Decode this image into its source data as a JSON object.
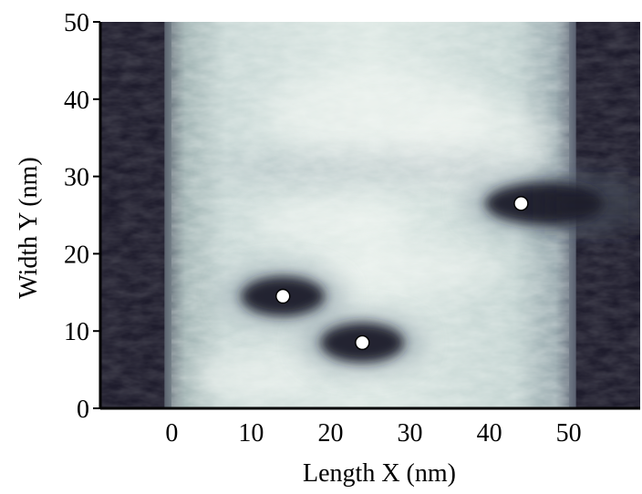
{
  "chart_data": {
    "type": "heatmap",
    "title": "",
    "xlabel": "Length X (nm)",
    "ylabel": "Width Y (nm)",
    "xlim": [
      -9,
      59
    ],
    "ylim": [
      0,
      50
    ],
    "x_ticks": [
      0,
      10,
      20,
      30,
      40,
      50
    ],
    "y_ticks": [
      0,
      10,
      20,
      30,
      40,
      50
    ],
    "grid": false,
    "legend": "none",
    "colors": {
      "low": "#1e1c2c",
      "mid": "#8494a0",
      "high": "#f2f6f2",
      "marker_fill": "#ffffff",
      "marker_stroke": "#000000"
    },
    "channel": {
      "x_range": [
        0,
        50
      ],
      "y_range": [
        0,
        50
      ]
    },
    "dark_regions": [
      {
        "x": 14,
        "y": 14.5,
        "x_radius": 7,
        "y_radius": 3
      },
      {
        "x": 24,
        "y": 8.5,
        "x_radius": 7,
        "y_radius": 3
      },
      {
        "x": 44,
        "y": 26.5,
        "x_radius": 10,
        "y_radius": 3.2
      }
    ],
    "markers": [
      {
        "x": 14,
        "y": 14.5
      },
      {
        "x": 24,
        "y": 8.5
      },
      {
        "x": 44,
        "y": 26.5
      }
    ]
  }
}
